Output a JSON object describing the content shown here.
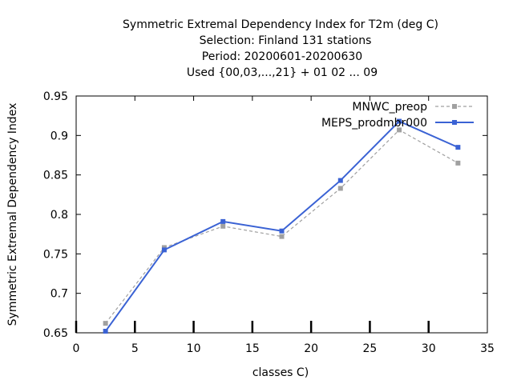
{
  "chart_data": {
    "type": "line",
    "title_lines": [
      "Symmetric Extremal Dependency Index  for T2m (deg C)",
      "Selection: Finland     131 stations",
      "Period: 20200601-20200630",
      "Used {00,03,...,21} + 01 02 ... 09"
    ],
    "xlabel": "classes C)",
    "ylabel": "Symmetric Extremal Dependency Index",
    "xlim": [
      0,
      35
    ],
    "ylim": [
      0.65,
      0.95
    ],
    "x_ticks": [
      "0",
      "5",
      "10",
      "15",
      "20",
      "25",
      "30",
      "35"
    ],
    "y_ticks": [
      "0.65",
      "0.7",
      "0.75",
      "0.8",
      "0.85",
      "0.9",
      "0.95"
    ],
    "grid": false,
    "legend_position": "top-right",
    "x": [
      2.5,
      7.5,
      12.5,
      17.5,
      22.5,
      27.5,
      32.5
    ],
    "series": [
      {
        "name": "MNWC_preop",
        "color": "#a0a0a0",
        "style": "dashed",
        "values": [
          0.662,
          0.758,
          0.785,
          0.772,
          0.833,
          0.907,
          0.865
        ]
      },
      {
        "name": "MEPS_prodmbr000",
        "color": "#3a62d4",
        "style": "solid",
        "values": [
          0.652,
          0.755,
          0.791,
          0.779,
          0.843,
          0.918,
          0.885
        ]
      }
    ]
  }
}
